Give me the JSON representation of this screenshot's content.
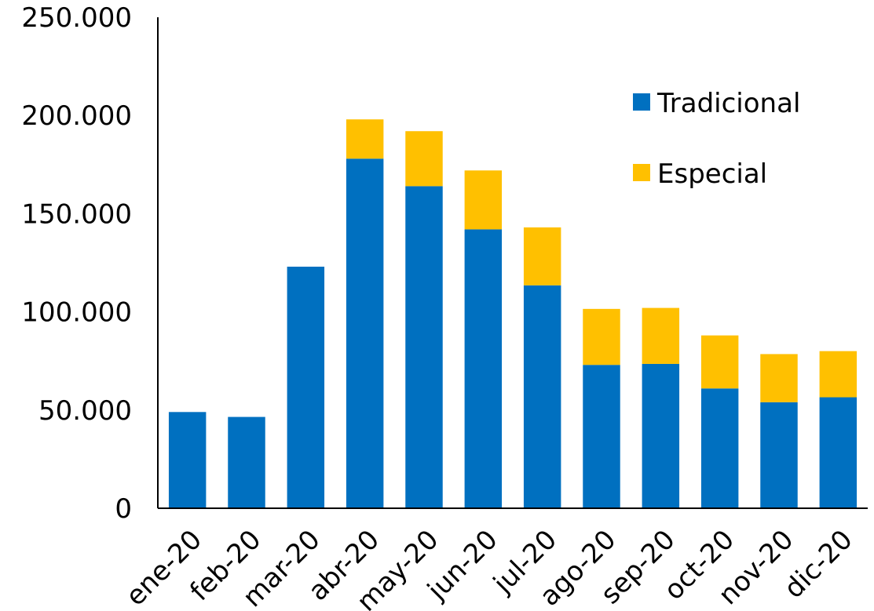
{
  "chart_data": {
    "type": "bar",
    "stacked": true,
    "categories": [
      "ene-20",
      "feb-20",
      "mar-20",
      "abr-20",
      "may-20",
      "jun-20",
      "jul-20",
      "ago-20",
      "sep-20",
      "oct-20",
      "nov-20",
      "dic-20"
    ],
    "series": [
      {
        "name": "Tradicional",
        "color": "#0070C0",
        "values": [
          49000,
          46500,
          123000,
          178000,
          164000,
          142000,
          113500,
          73000,
          73500,
          61000,
          54000,
          56500
        ]
      },
      {
        "name": "Especial",
        "color": "#FFC000",
        "values": [
          0,
          0,
          0,
          20000,
          28000,
          30000,
          29500,
          28500,
          28500,
          27000,
          24500,
          23500
        ]
      }
    ],
    "yticks": [
      "0",
      "50.000",
      "100.000",
      "150.000",
      "200.000",
      "250.000"
    ],
    "ylim": [
      0,
      250000
    ],
    "title": "",
    "xlabel": "",
    "ylabel": "",
    "grid": false,
    "legend_position": "top-right"
  }
}
